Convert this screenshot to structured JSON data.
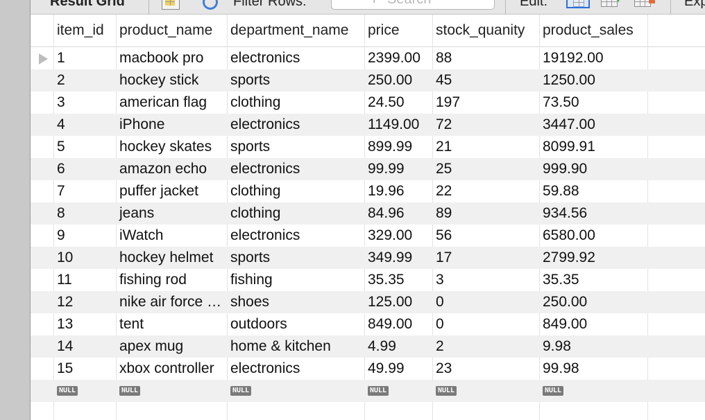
{
  "toolbar": {
    "result_label": "Result Grid",
    "filter_label": "Filter Rows:",
    "search_placeholder": "Search",
    "edit_label": "Edit:",
    "export_label": "Exp",
    "icons": [
      "grid-icon",
      "refresh-icon",
      "search-icon",
      "edit-rows-icon",
      "add-row-icon",
      "delete-row-icon"
    ]
  },
  "grid": {
    "columns": [
      "item_id",
      "product_name",
      "department_name",
      "price",
      "stock_quanity",
      "product_sales"
    ],
    "rows": [
      [
        "1",
        "macbook pro",
        "electronics",
        "2399.00",
        "88",
        "19192.00"
      ],
      [
        "2",
        "hockey stick",
        "sports",
        "250.00",
        "45",
        "1250.00"
      ],
      [
        "3",
        "american flag",
        "clothing",
        "24.50",
        "197",
        "73.50"
      ],
      [
        "4",
        "iPhone",
        "electronics",
        "1149.00",
        "72",
        "3447.00"
      ],
      [
        "5",
        "hockey skates",
        "sports",
        "899.99",
        "21",
        "8099.91"
      ],
      [
        "6",
        "amazon echo",
        "electronics",
        "99.99",
        "25",
        "999.90"
      ],
      [
        "7",
        "puffer jacket",
        "clothing",
        "19.96",
        "22",
        "59.88"
      ],
      [
        "8",
        "jeans",
        "clothing",
        "84.96",
        "89",
        "934.56"
      ],
      [
        "9",
        "iWatch",
        "electronics",
        "329.00",
        "56",
        "6580.00"
      ],
      [
        "10",
        "hockey helmet",
        "sports",
        "349.99",
        "17",
        "2799.92"
      ],
      [
        "11",
        "fishing rod",
        "fishing",
        "35.35",
        "3",
        "35.35"
      ],
      [
        "12",
        "nike air force ones",
        "shoes",
        "125.00",
        "0",
        "250.00"
      ],
      [
        "13",
        "tent",
        "outdoors",
        "849.00",
        "0",
        "849.00"
      ],
      [
        "14",
        "apex mug",
        "home & kitchen",
        "4.99",
        "2",
        "9.98"
      ],
      [
        "15",
        "xbox controller",
        "electronics",
        "49.99",
        "23",
        "99.98"
      ]
    ],
    "null_label": "NULL",
    "selected_row_index": 0
  },
  "colors": {
    "alt_row": "#f0f0f0",
    "null_badge": "#7a7a7a",
    "sidebar": "#c9c9c9",
    "toolbar": "#e6e6e6",
    "accent": "#2d6fd8"
  }
}
